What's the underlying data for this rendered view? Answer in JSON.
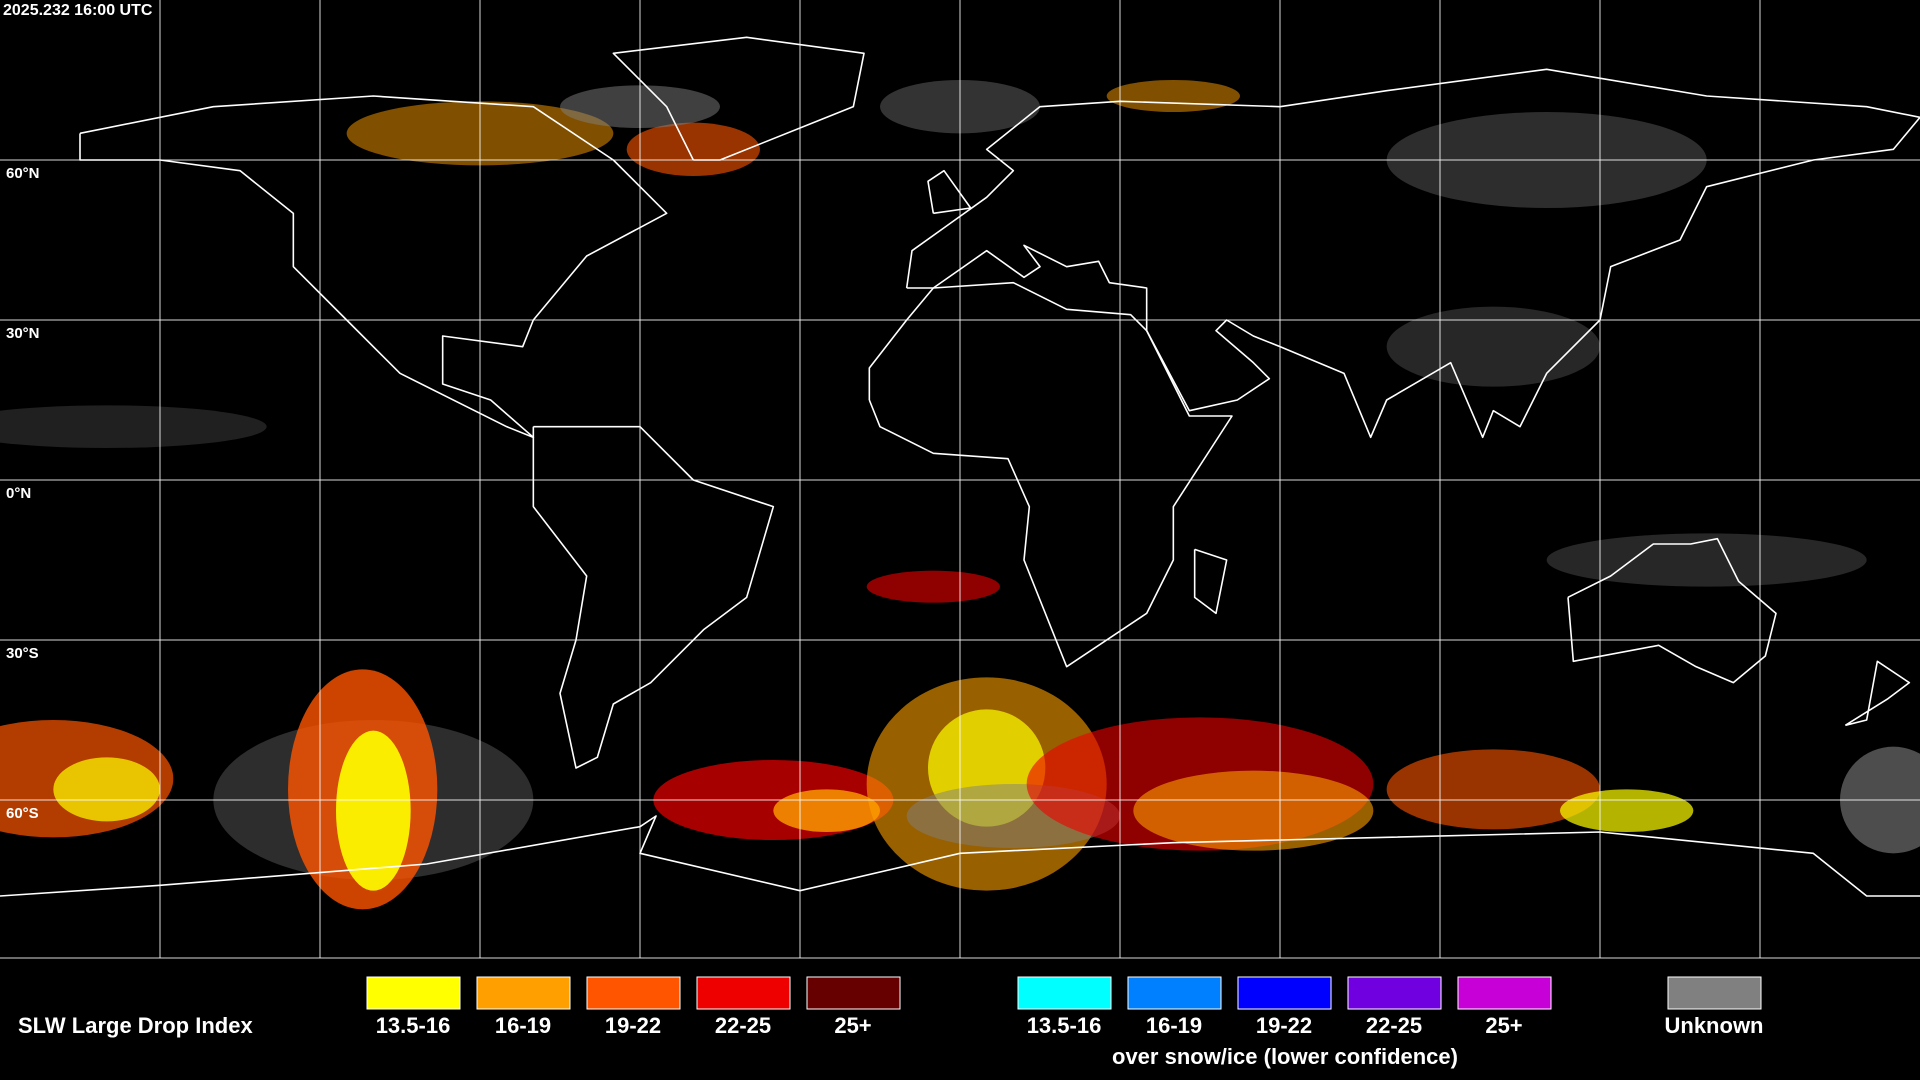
{
  "timestamp": "2025.232 16:00 UTC",
  "latitude_labels": [
    "60°N",
    "30°N",
    "0°N",
    "30°S",
    "60°S"
  ],
  "legend": {
    "title": "SLW Large Drop Index",
    "items": [
      {
        "label": "13.5-16",
        "color": "#ffff00"
      },
      {
        "label": "16-19",
        "color": "#ffa000"
      },
      {
        "label": "19-22",
        "color": "#ff5500"
      },
      {
        "label": "22-25",
        "color": "#ee0000"
      },
      {
        "label": "25+",
        "color": "#660000"
      }
    ],
    "snow_items": [
      {
        "label": "13.5-16",
        "color": "#00ffff"
      },
      {
        "label": "16-19",
        "color": "#0080ff"
      },
      {
        "label": "19-22",
        "color": "#0000ff"
      },
      {
        "label": "22-25",
        "color": "#7000e0"
      },
      {
        "label": "25+",
        "color": "#c800d8"
      }
    ],
    "snow_note": "over snow/ice (lower confidence)",
    "unknown": {
      "label": "Unknown",
      "color": "#808080"
    }
  }
}
